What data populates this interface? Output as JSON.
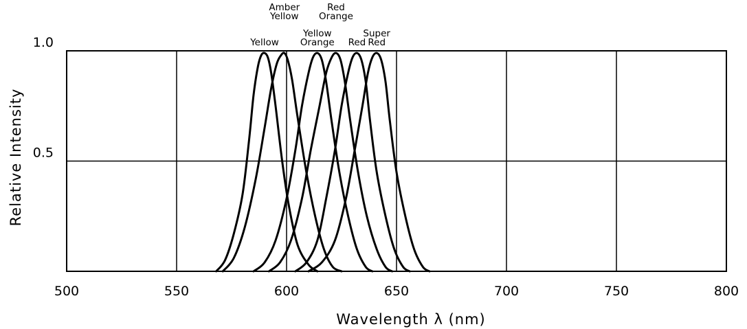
{
  "chart_data": {
    "type": "line",
    "title": "",
    "xlabel": "Wavelength λ (nm)",
    "ylabel": "Relative Intensity",
    "xlim": [
      500,
      800
    ],
    "ylim": [
      0,
      1.0
    ],
    "x_ticks": [
      "500",
      "550",
      "600",
      "650",
      "700",
      "750",
      "800"
    ],
    "y_ticks": [
      "0.5",
      "1.0"
    ],
    "grid": true,
    "series": [
      {
        "name": "Yellow",
        "label_lines": [
          "Yellow"
        ],
        "x": [
          568,
          572,
          576,
          580,
          583,
          585,
          587,
          588.5,
          590,
          591.5,
          593,
          595,
          598,
          601,
          605,
          610,
          614
        ],
        "y": [
          0.0,
          0.05,
          0.17,
          0.35,
          0.6,
          0.8,
          0.93,
          0.98,
          0.99,
          0.97,
          0.9,
          0.75,
          0.5,
          0.3,
          0.12,
          0.03,
          0.0
        ]
      },
      {
        "name": "Amber Yellow",
        "label_lines": [
          "Amber",
          "Yellow"
        ],
        "x": [
          571,
          576,
          581,
          586,
          590,
          593,
          595.5,
          597.5,
          599,
          600.5,
          602.5,
          605,
          609,
          613,
          617,
          621,
          625
        ],
        "y": [
          0.0,
          0.06,
          0.2,
          0.42,
          0.65,
          0.83,
          0.94,
          0.98,
          0.99,
          0.96,
          0.87,
          0.7,
          0.45,
          0.25,
          0.1,
          0.02,
          0.0
        ]
      },
      {
        "name": "Yellow Orange",
        "label_lines": [
          "Yellow",
          "Orange"
        ],
        "x": [
          585,
          590,
          595,
          600,
          604,
          607,
          610,
          612,
          614,
          616,
          618,
          620.5,
          624,
          628,
          632,
          636,
          639
        ],
        "y": [
          0.0,
          0.04,
          0.14,
          0.33,
          0.55,
          0.75,
          0.9,
          0.97,
          0.99,
          0.96,
          0.86,
          0.68,
          0.45,
          0.25,
          0.1,
          0.02,
          0.0
        ]
      },
      {
        "name": "Red Orange",
        "label_lines": [
          "Red",
          "Orange"
        ],
        "x": [
          592,
          597,
          602,
          607,
          611,
          615,
          618,
          620.5,
          622.5,
          624.5,
          626.5,
          629,
          632.5,
          636.5,
          641,
          645,
          648
        ],
        "y": [
          0.0,
          0.04,
          0.14,
          0.33,
          0.55,
          0.75,
          0.9,
          0.97,
          0.99,
          0.96,
          0.86,
          0.68,
          0.45,
          0.25,
          0.1,
          0.02,
          0.0
        ]
      },
      {
        "name": "Red",
        "label_lines": [
          "Red"
        ],
        "x": [
          604,
          609,
          614,
          618,
          622,
          625,
          628,
          630,
          632,
          634,
          636,
          638,
          641,
          645,
          649,
          653,
          656
        ],
        "y": [
          0.0,
          0.04,
          0.14,
          0.33,
          0.55,
          0.75,
          0.9,
          0.97,
          0.99,
          0.96,
          0.86,
          0.68,
          0.45,
          0.25,
          0.1,
          0.02,
          0.0
        ]
      },
      {
        "name": "Super Red",
        "label_lines": [
          "Super",
          "Red"
        ],
        "x": [
          610,
          616,
          622,
          627,
          631,
          634.5,
          637,
          639,
          641,
          643,
          645,
          647,
          650,
          654,
          658,
          662,
          665
        ],
        "y": [
          0.0,
          0.04,
          0.14,
          0.33,
          0.55,
          0.75,
          0.9,
          0.97,
          0.99,
          0.96,
          0.86,
          0.68,
          0.45,
          0.25,
          0.1,
          0.02,
          0.0
        ]
      }
    ]
  }
}
